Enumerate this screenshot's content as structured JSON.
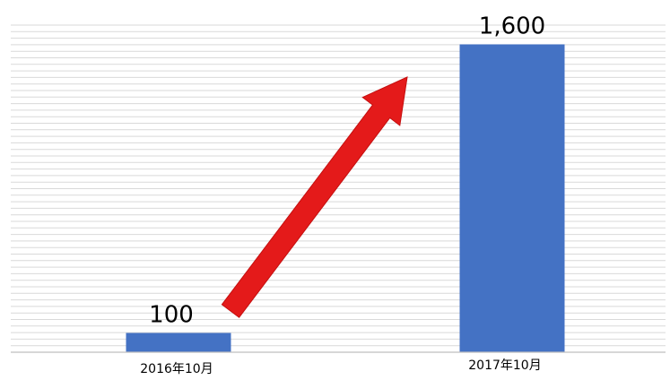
{
  "chart_data": {
    "type": "bar",
    "categories": [
      "2016年10月",
      "2017年10月"
    ],
    "values": [
      100,
      1600
    ],
    "data_labels": [
      "100",
      "1,600"
    ],
    "title": "",
    "xlabel": "",
    "ylabel": "",
    "ylim": [
      0,
      1700
    ],
    "grid": true,
    "legend": "none",
    "annotation": "red upward arrow from first bar to second bar"
  },
  "colors": {
    "bar": "#4472c4",
    "arrow": "#e41a1a",
    "gridline": "#d9d9d9",
    "axis": "#bfbfbf"
  }
}
